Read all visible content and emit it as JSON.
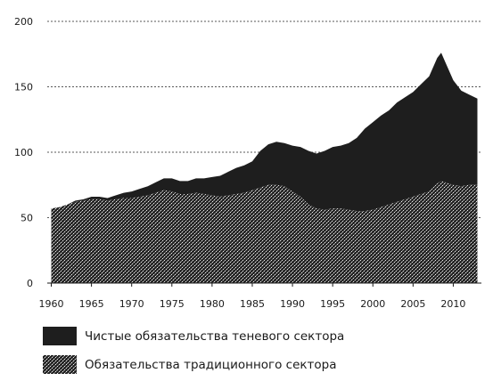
{
  "chart_data": {
    "type": "area",
    "stacked": true,
    "title": "",
    "xlabel": "",
    "ylabel": "",
    "xlim": [
      1959.5,
      2013.5
    ],
    "ylim": [
      0,
      200
    ],
    "x_ticks": [
      "1960",
      "1965",
      "1970",
      "1975",
      "1980",
      "1985",
      "1990",
      "1995",
      "2000",
      "2005",
      "2010"
    ],
    "y_ticks": [
      "0",
      "50",
      "100",
      "150",
      "200"
    ],
    "grid": "horizontal dotted",
    "legend_position": "bottom",
    "colors": {
      "shadow": "#1e1e1e",
      "traditional_pattern": "#2a2a2a",
      "background": "#ffffff"
    },
    "x": [
      1960,
      1961,
      1962,
      1963,
      1964,
      1965,
      1966,
      1967,
      1968,
      1969,
      1970,
      1971,
      1972,
      1973,
      1974,
      1975,
      1976,
      1977,
      1978,
      1979,
      1980,
      1981,
      1982,
      1983,
      1984,
      1985,
      1986,
      1987,
      1988,
      1989,
      1990,
      1991,
      1992,
      1993,
      1994,
      1995,
      1996,
      1997,
      1998,
      1999,
      2000,
      2001,
      2002,
      2003,
      2004,
      2005,
      2006,
      2007,
      2008,
      2008.5,
      2009,
      2010,
      2011,
      2012,
      2013
    ],
    "series": [
      {
        "name": "Обязательства традиционного сектора",
        "pattern": "stipple",
        "values": [
          57,
          58,
          60,
          62,
          63,
          64,
          64,
          63,
          64,
          65,
          65,
          66,
          67,
          69,
          71,
          70,
          68,
          68,
          69,
          68,
          67,
          66,
          67,
          68,
          69,
          71,
          73,
          75,
          75,
          74,
          70,
          66,
          60,
          57,
          56,
          57,
          57,
          56,
          55,
          55,
          56,
          58,
          60,
          62,
          64,
          66,
          68,
          70,
          76,
          78,
          77,
          75,
          74,
          75,
          75
        ]
      },
      {
        "name": "Чистые обязательства теневого сектора",
        "values": [
          0,
          0,
          0,
          1,
          1,
          2,
          2,
          2,
          3,
          4,
          5,
          6,
          7,
          8,
          9,
          10,
          10,
          10,
          11,
          12,
          14,
          16,
          18,
          20,
          21,
          22,
          28,
          31,
          33,
          33,
          35,
          38,
          41,
          42,
          45,
          47,
          48,
          51,
          56,
          63,
          67,
          70,
          72,
          76,
          78,
          80,
          84,
          88,
          96,
          98,
          92,
          80,
          73,
          69,
          66
        ]
      }
    ],
    "legend": [
      {
        "key": "shadow",
        "label": "Чистые обязательства теневого сектора"
      },
      {
        "key": "traditional",
        "label": "Обязательства традиционного сектора"
      }
    ]
  }
}
